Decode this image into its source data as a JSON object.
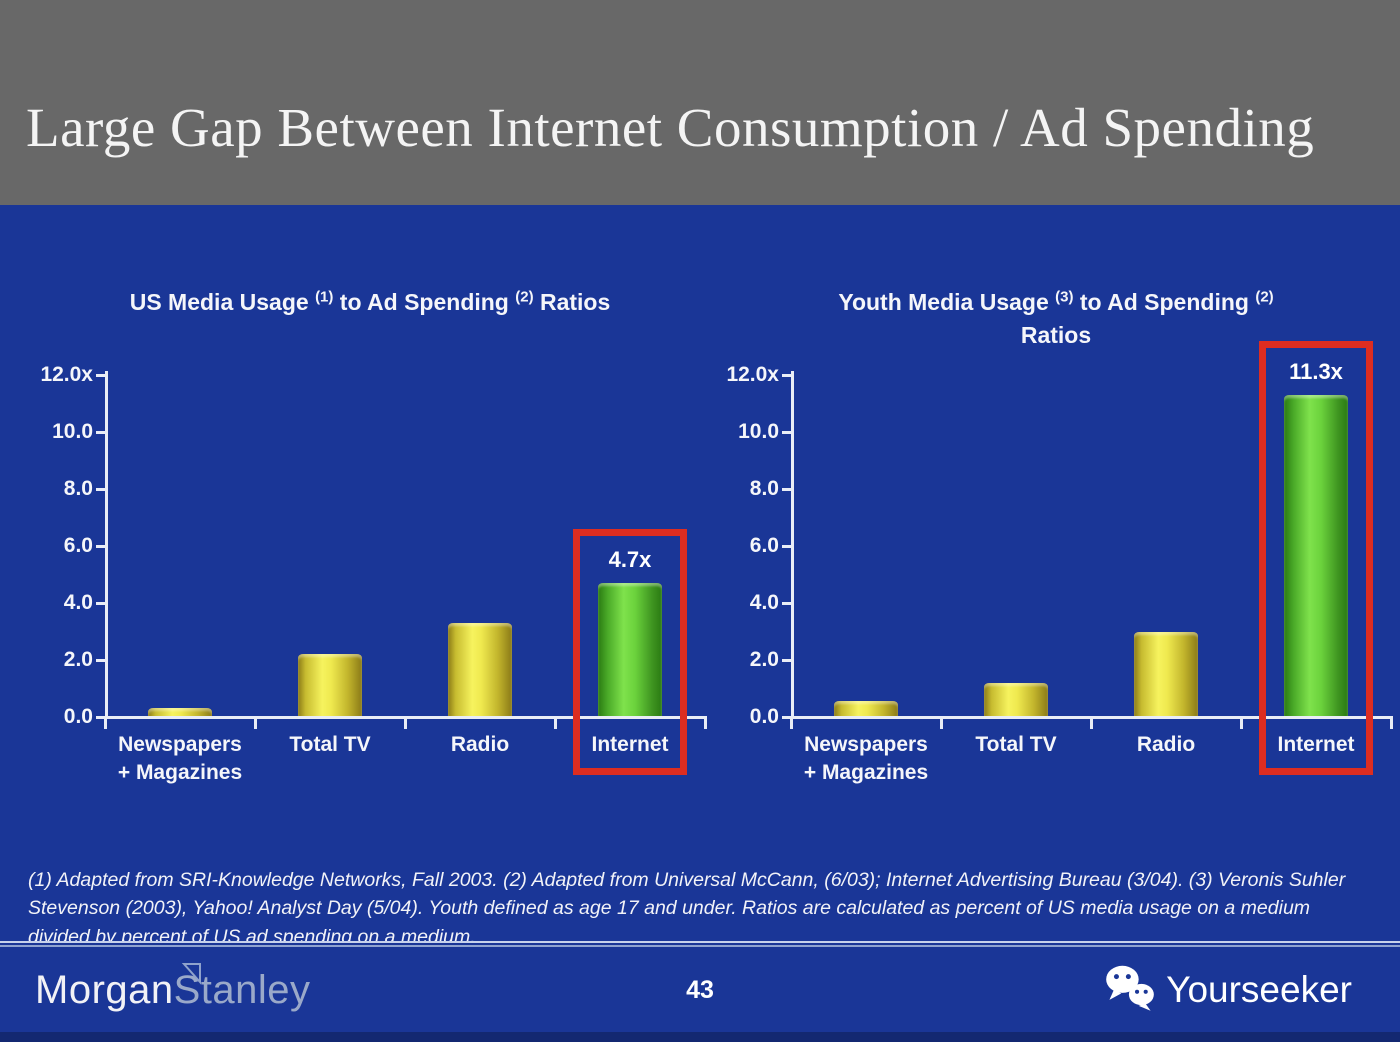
{
  "header": {
    "title": "Large Gap Between Internet Consumption / Ad Spending"
  },
  "chart_data": [
    {
      "type": "bar",
      "title_segments": [
        {
          "text": "US Media Usage "
        },
        {
          "sup": "(1)"
        },
        {
          "text": " to Ad Spending "
        },
        {
          "sup": "(2)"
        },
        {
          "text": " Ratios"
        }
      ],
      "categories": [
        "Newspapers\n+ Magazines",
        "Total TV",
        "Radio",
        "Internet"
      ],
      "values": [
        0.3,
        2.2,
        3.3,
        4.7
      ],
      "highlight_index": 3,
      "highlight_label": "4.7x",
      "y_ticks": [
        "12.0x",
        "10.0",
        "8.0",
        "6.0",
        "4.0",
        "2.0",
        "0.0"
      ],
      "ylim": [
        0,
        12
      ],
      "grid": false,
      "legend": false
    },
    {
      "type": "bar",
      "title_segments": [
        {
          "text": "Youth Media Usage "
        },
        {
          "sup": "(3)"
        },
        {
          "text": " to Ad Spending "
        },
        {
          "sup": "(2)"
        },
        {
          "br": true
        },
        {
          "text": "Ratios"
        }
      ],
      "categories": [
        "Newspapers\n+ Magazines",
        "Total TV",
        "Radio",
        "Internet"
      ],
      "values": [
        0.55,
        1.2,
        3.0,
        11.3
      ],
      "highlight_index": 3,
      "highlight_label": "11.3x",
      "y_ticks": [
        "12.0x",
        "10.0",
        "8.0",
        "6.0",
        "4.0",
        "2.0",
        "0.0"
      ],
      "ylim": [
        0,
        12
      ],
      "grid": false,
      "legend": false
    }
  ],
  "footnote": "(1) Adapted from SRI-Knowledge Networks, Fall 2003.  (2) Adapted from Universal McCann, (6/03); Internet Advertising Bureau (3/04). (3) Veronis Suhler Stevenson (2003), Yahoo! Analyst Day (5/04).  Youth defined as age 17 and under.  Ratios are calculated as percent of US media usage on a medium divided by percent of US ad spending on a medium.",
  "footer": {
    "brand_part1": "Morgan",
    "brand_part2": "Stanley",
    "page_number": "43",
    "logo_text": "Yourseeker"
  },
  "colors": {
    "header_gray": "#686868",
    "background_blue": "#1a3697",
    "bar_yellow": "#f6f35e",
    "bar_yellow_dark": "#8a7a17",
    "bar_green": "#7fe24c",
    "bar_green_dark": "#2a7a12",
    "highlight_red": "#dd2d21",
    "axis_white": "#e9edf6"
  }
}
